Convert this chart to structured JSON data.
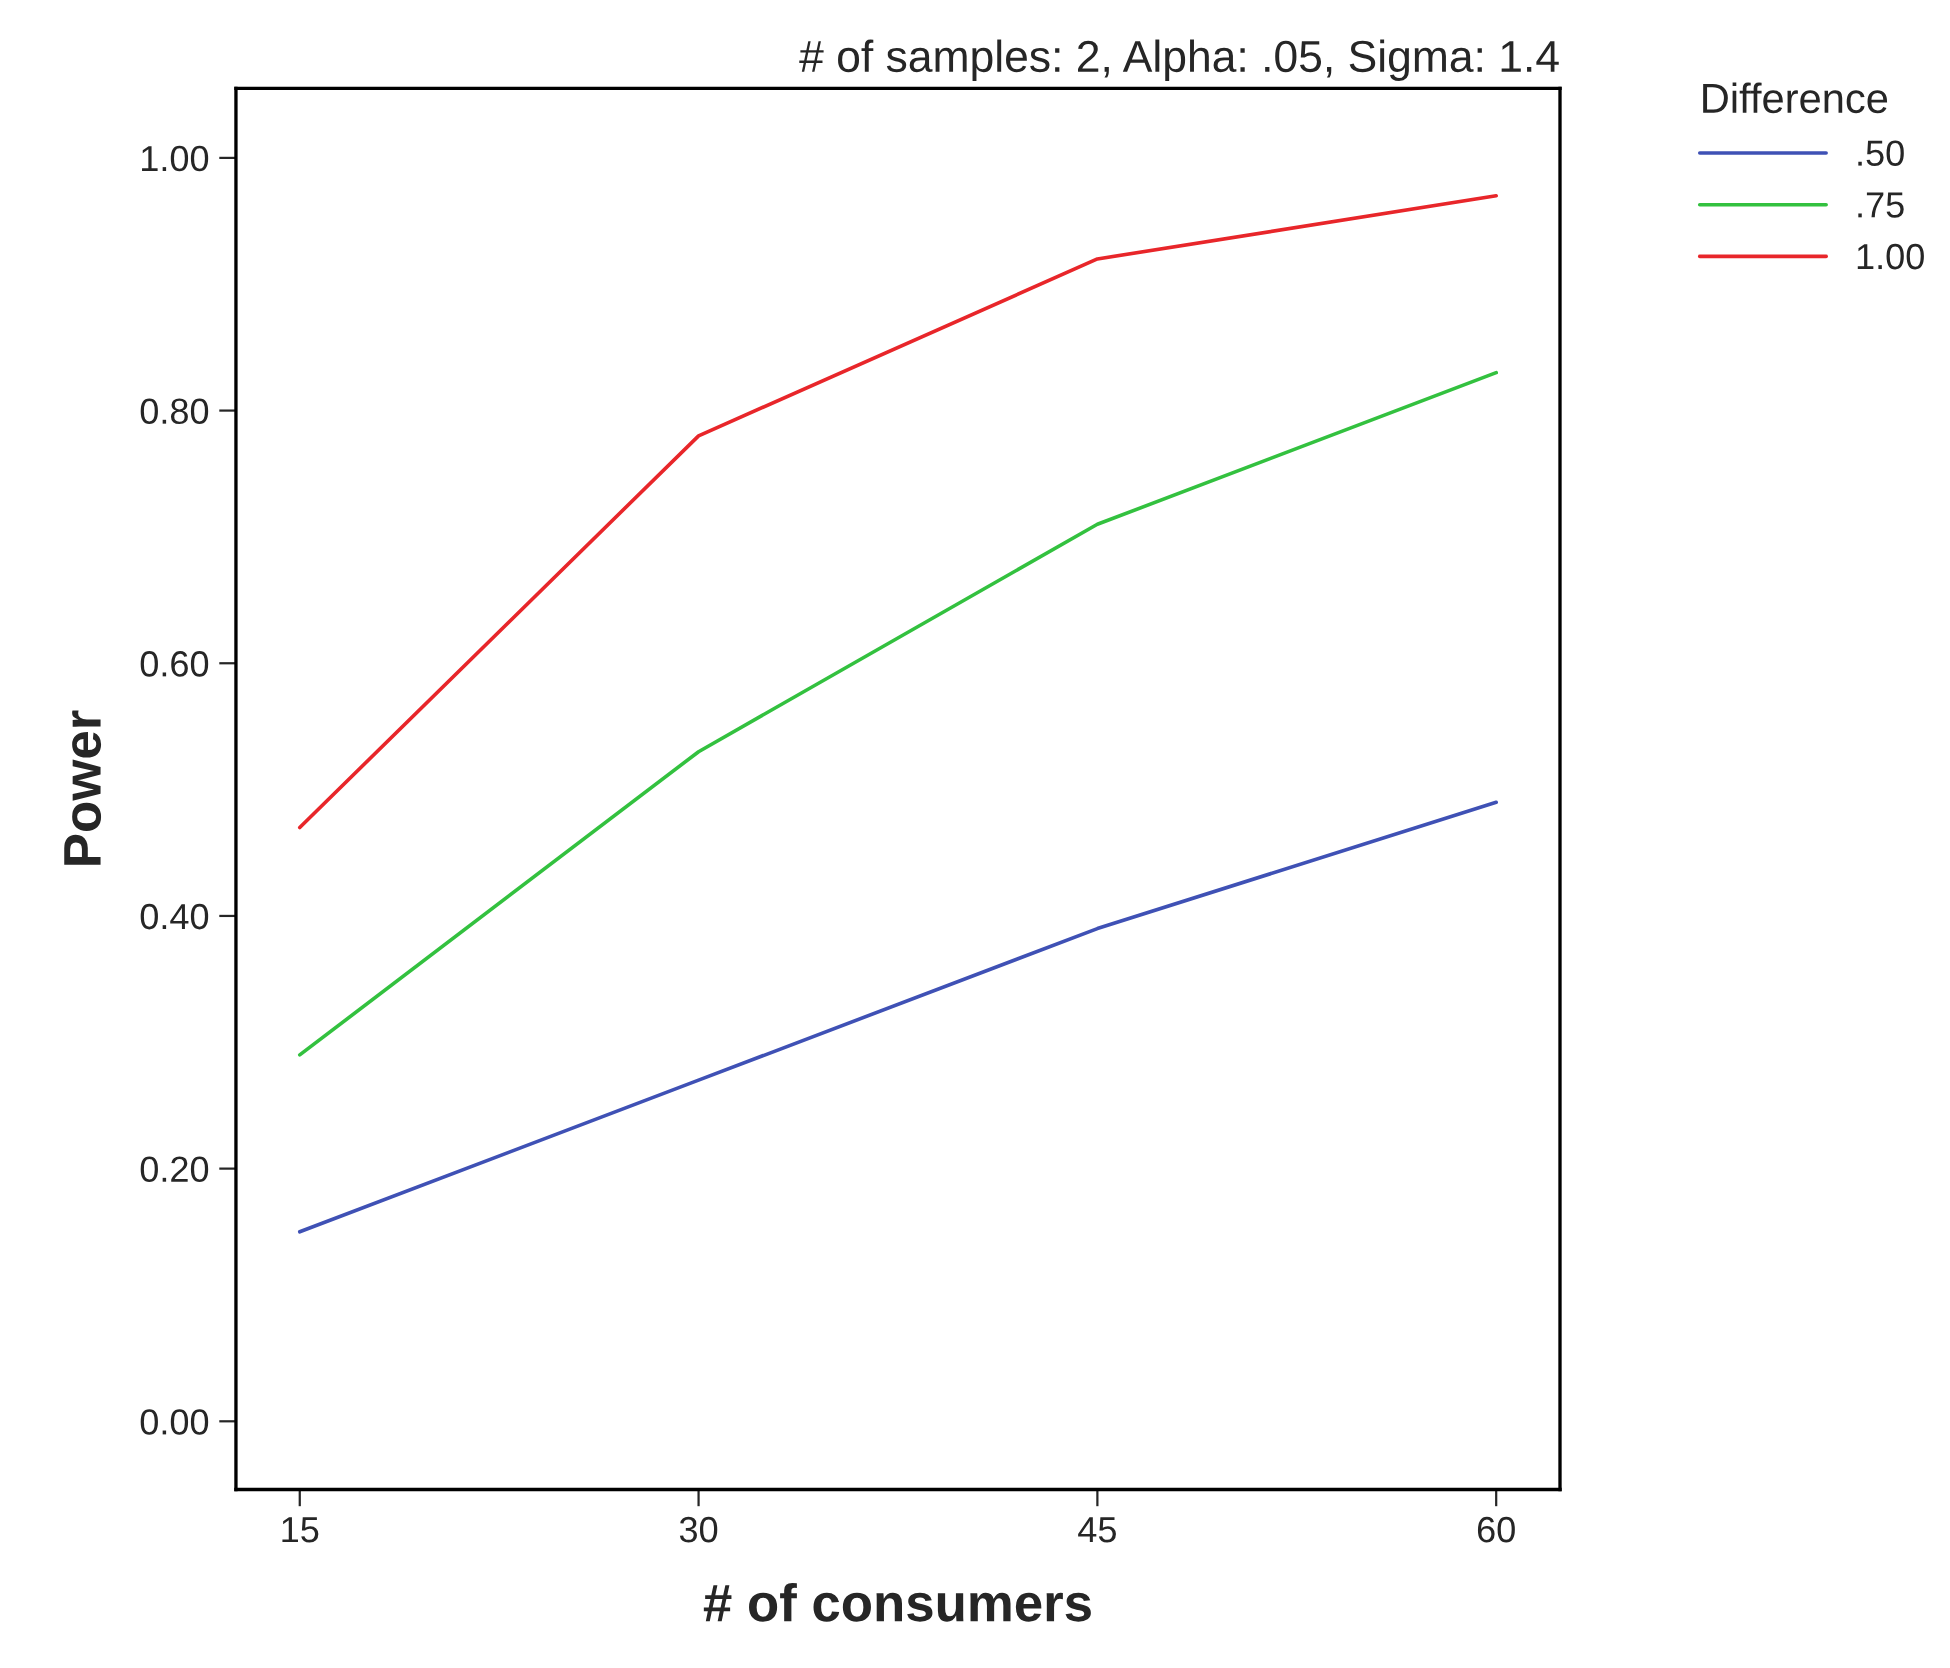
{
  "chart_data": {
    "type": "line",
    "title": "# of samples: 2, Alpha: .05, Sigma: 1.4",
    "xlabel": "# of consumers",
    "ylabel": "Power",
    "legend_title": "Difference",
    "x": [
      15,
      30,
      45,
      60
    ],
    "series": [
      {
        "name": ".50",
        "color": "#3f51b5",
        "values": [
          0.15,
          0.27,
          0.39,
          0.49
        ]
      },
      {
        "name": ".75",
        "color": "#33c13f",
        "values": [
          0.29,
          0.53,
          0.71,
          0.83
        ]
      },
      {
        "name": "1.00",
        "color": "#e8262a",
        "values": [
          0.47,
          0.78,
          0.92,
          0.97
        ]
      }
    ],
    "xlim": [
      12.6,
      62.4
    ],
    "xticks": [
      15,
      30,
      45,
      60
    ],
    "ylim": [
      -0.054,
      1.055
    ],
    "yticks": [
      {
        "value": 0,
        "label": "0.00"
      },
      {
        "value": 0.2,
        "label": "0.20"
      },
      {
        "value": 0.4,
        "label": "0.40"
      },
      {
        "value": 0.6,
        "label": "0.60"
      },
      {
        "value": 0.8,
        "label": "0.80"
      },
      {
        "value": 1.0,
        "label": "1.00"
      }
    ],
    "grid": false,
    "legend": "right",
    "marker": "none",
    "line_style": "solid"
  }
}
